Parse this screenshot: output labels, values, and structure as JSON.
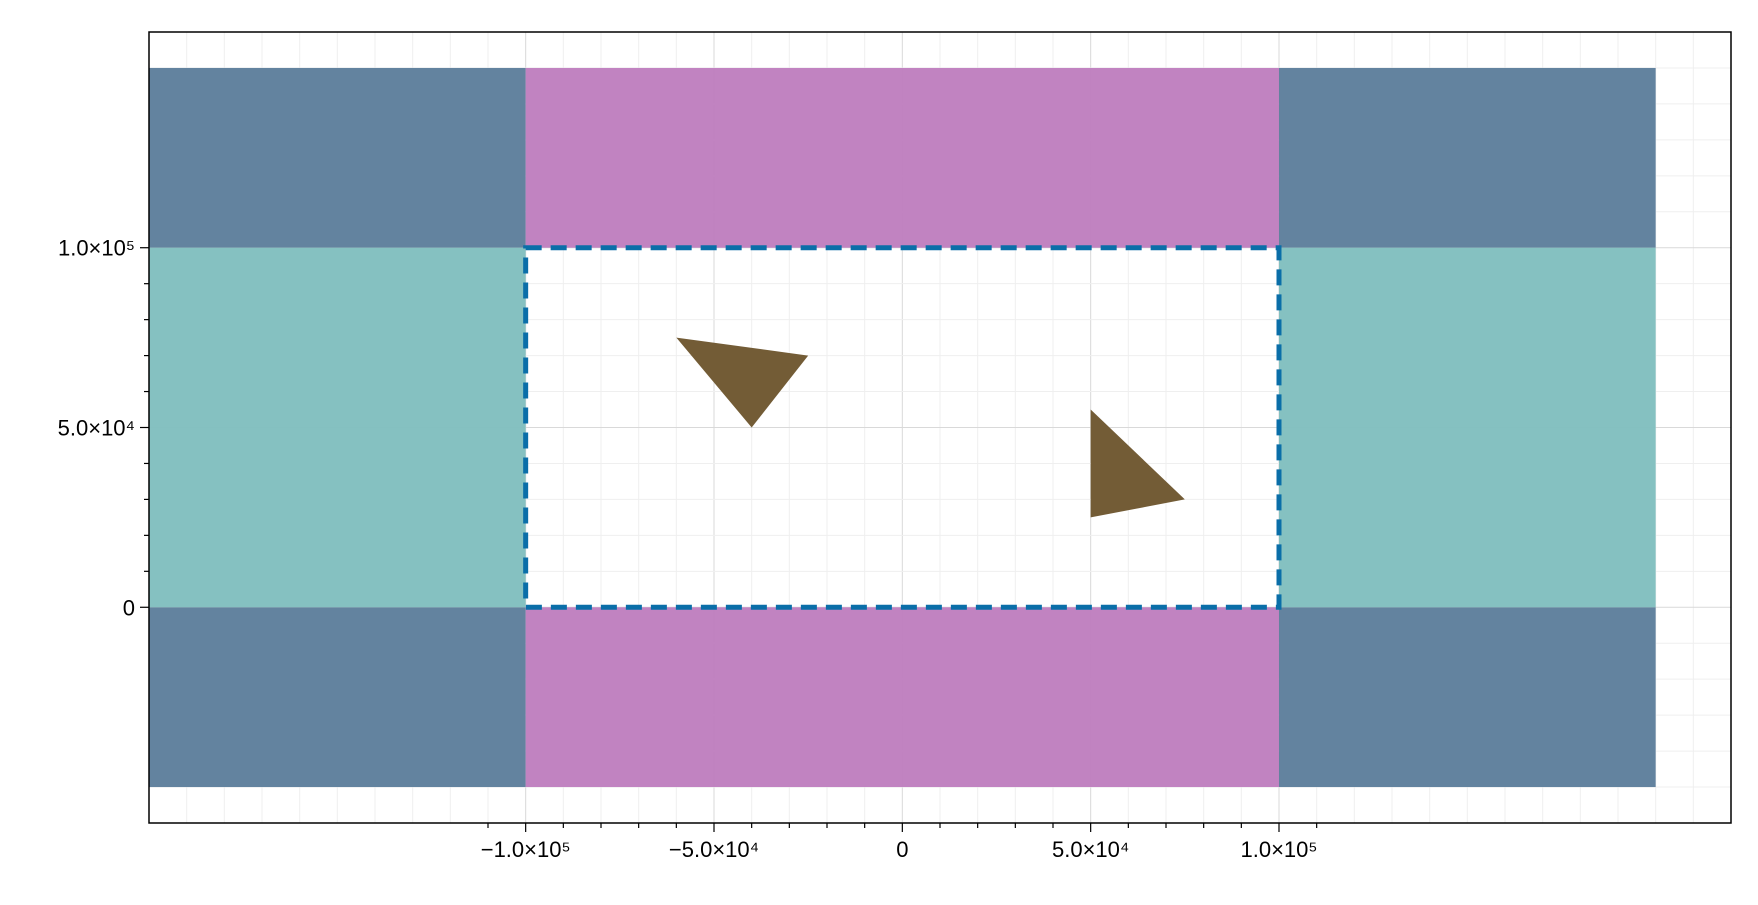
{
  "chart_data": {
    "type": "area",
    "title": "",
    "xlabel": "",
    "ylabel": "",
    "xlim": [
      -200000,
      220000
    ],
    "ylim": [
      -60000,
      160000
    ],
    "grid": true,
    "x_ticks": [
      {
        "value": -100000,
        "label": "−1.0×10⁵"
      },
      {
        "value": -50000,
        "label": "−5.0×10⁴"
      },
      {
        "value": 0,
        "label": "0"
      },
      {
        "value": 50000,
        "label": "5.0×10⁴"
      },
      {
        "value": 100000,
        "label": "1.0×10⁵"
      }
    ],
    "y_ticks": [
      {
        "value": 0,
        "label": "0"
      },
      {
        "value": 50000,
        "label": "5.0×10⁴"
      },
      {
        "value": 100000,
        "label": "1.0×10⁵"
      }
    ],
    "minor_step": 10000,
    "rectangles": [
      {
        "name": "corner-bottom-left",
        "x": [
          -200000,
          -100000
        ],
        "y": [
          -50000,
          0
        ],
        "color": "#5e7f9c"
      },
      {
        "name": "corner-bottom-right",
        "x": [
          100000,
          200000
        ],
        "y": [
          -50000,
          0
        ],
        "color": "#5e7f9c"
      },
      {
        "name": "corner-top-left",
        "x": [
          -200000,
          -100000
        ],
        "y": [
          100000,
          150000
        ],
        "color": "#5e7f9c"
      },
      {
        "name": "corner-top-right",
        "x": [
          100000,
          200000
        ],
        "y": [
          100000,
          150000
        ],
        "color": "#5e7f9c"
      },
      {
        "name": "side-left",
        "x": [
          -200000,
          -100000
        ],
        "y": [
          0,
          100000
        ],
        "color": "#81bfbf"
      },
      {
        "name": "side-right",
        "x": [
          100000,
          200000
        ],
        "y": [
          0,
          100000
        ],
        "color": "#81bfbf"
      },
      {
        "name": "band-bottom",
        "x": [
          -100000,
          100000
        ],
        "y": [
          -50000,
          0
        ],
        "color": "#bf7fbf"
      },
      {
        "name": "band-top",
        "x": [
          -100000,
          100000
        ],
        "y": [
          100000,
          150000
        ],
        "color": "#bf7fbf"
      }
    ],
    "boundary": {
      "x": [
        -100000,
        100000
      ],
      "y": [
        0,
        100000
      ],
      "color": "#0a6ea8",
      "style": "dashed"
    },
    "triangles": [
      {
        "name": "triangle-1",
        "points": [
          [
            -60000,
            75000
          ],
          [
            -25000,
            70000
          ],
          [
            -40000,
            50000
          ]
        ],
        "color": "#735c36"
      },
      {
        "name": "triangle-2",
        "points": [
          [
            50000,
            55000
          ],
          [
            75000,
            30000
          ],
          [
            50000,
            25000
          ]
        ],
        "color": "#735c36"
      }
    ]
  }
}
